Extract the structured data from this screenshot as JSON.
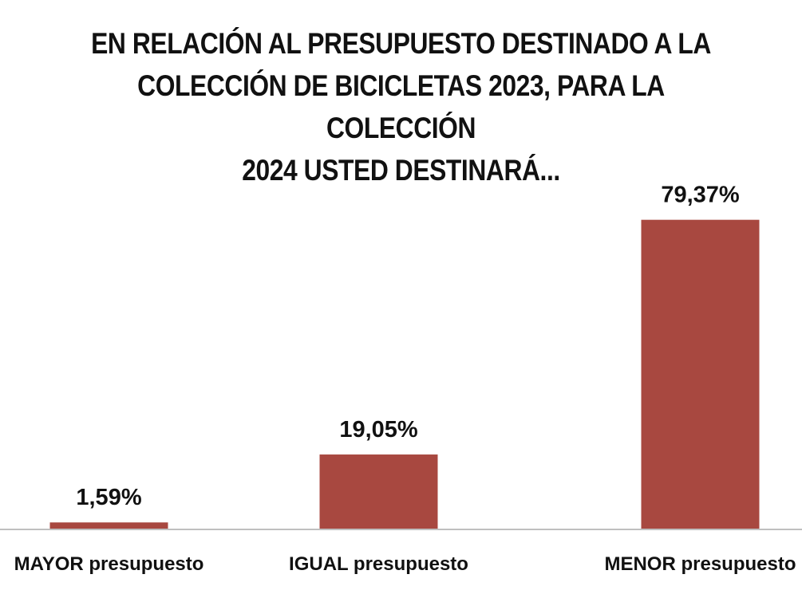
{
  "chart_data": {
    "type": "bar",
    "title_lines": [
      "EN RELACIÓN AL PRESUPUESTO DESTINADO A LA",
      "COLECCIÓN  DE BICICLETAS 2023, PARA LA COLECCIÓN",
      "2024 USTED DESTINARÁ..."
    ],
    "categories": [
      {
        "strong": "MAYOR",
        "rest": " presupuesto"
      },
      {
        "strong": "IGUAL",
        "rest": " presupuesto"
      },
      {
        "strong": "MENOR",
        "rest": " presupuesto"
      }
    ],
    "values": [
      1.59,
      19.05,
      79.37
    ],
    "data_labels": [
      "1,59%",
      "19,05%",
      "79,37%"
    ],
    "ylim": [
      0,
      100
    ],
    "grid": false,
    "legend": "none",
    "colors": {
      "bar": "#a84840",
      "axis": "#bfbfbf",
      "text": "#111111"
    }
  }
}
